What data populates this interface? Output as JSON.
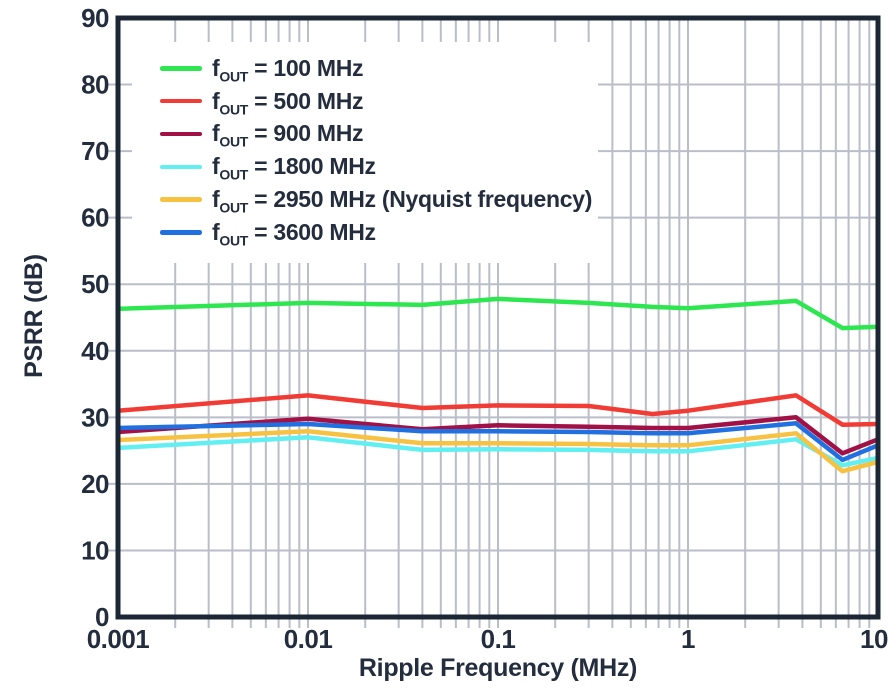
{
  "chart_data": {
    "type": "line",
    "title": "",
    "xlabel": "Ripple Frequency (MHz)",
    "ylabel": "PSRR (dB)",
    "x_scale": "log",
    "xlim": [
      0.001,
      10
    ],
    "ylim": [
      0,
      90
    ],
    "grid": "vertical log minor+major lines, horizontal lines every 10 dB",
    "legend_position": "top-left inside plot area, white background",
    "y_ticks": [
      0,
      10,
      20,
      30,
      40,
      50,
      60,
      70,
      80,
      90
    ],
    "x_tick_values": [
      0.001,
      0.01,
      0.1,
      1,
      10
    ],
    "x_tick_labels": [
      "0.001",
      "0.01",
      "0.1",
      "1",
      "10"
    ],
    "x": [
      0.001,
      0.01,
      0.04,
      0.1,
      0.3,
      0.65,
      1,
      3.7,
      6.5,
      10
    ],
    "series": [
      {
        "name": "fOUT = 100 MHz",
        "legend": {
          "pre": "f",
          "sub": "OUT",
          "post": " = 100 MHz"
        },
        "color": "#2DE650",
        "values": [
          46.3,
          47.2,
          46.9,
          47.8,
          47.2,
          46.6,
          46.4,
          47.5,
          43.4,
          43.6
        ]
      },
      {
        "name": "fOUT = 500 MHz",
        "legend": {
          "pre": "f",
          "sub": "OUT",
          "post": " = 500 MHz"
        },
        "color": "#F13C35",
        "values": [
          31.0,
          33.3,
          31.4,
          31.8,
          31.7,
          30.5,
          31.0,
          33.3,
          28.9,
          29.0
        ]
      },
      {
        "name": "fOUT = 900 MHz",
        "legend": {
          "pre": "f",
          "sub": "OUT",
          "post": " = 900 MHz"
        },
        "color": "#A11145",
        "values": [
          27.8,
          29.8,
          28.2,
          28.8,
          28.6,
          28.4,
          28.4,
          30.0,
          24.6,
          26.7
        ]
      },
      {
        "name": "fOUT = 1800 MHz",
        "legend": {
          "pre": "f",
          "sub": "OUT",
          "post": " = 1800 MHz"
        },
        "color": "#62EFF2",
        "values": [
          25.4,
          27.0,
          25.1,
          25.2,
          25.1,
          24.9,
          24.9,
          26.7,
          22.8,
          23.9
        ]
      },
      {
        "name": "fOUT = 2950 MHz (Nyquist frequency)",
        "legend": {
          "pre": "f",
          "sub": "OUT",
          "post": " = 2950 MHz (Nyquist frequency)"
        },
        "color": "#F7C242",
        "values": [
          26.6,
          27.9,
          26.1,
          26.1,
          26.0,
          25.8,
          25.8,
          27.6,
          21.9,
          23.3
        ]
      },
      {
        "name": "fOUT = 3600 MHz",
        "legend": {
          "pre": "f",
          "sub": "OUT",
          "post": " = 3600 MHz"
        },
        "color": "#2170E0",
        "values": [
          28.4,
          29.0,
          27.9,
          27.9,
          27.8,
          27.6,
          27.6,
          29.1,
          23.6,
          25.8
        ]
      }
    ],
    "colors": {
      "axis_text": "#232D3D",
      "grid": "#B9BEC9",
      "border": "#1D2635",
      "background": "#FFFFFF"
    }
  }
}
